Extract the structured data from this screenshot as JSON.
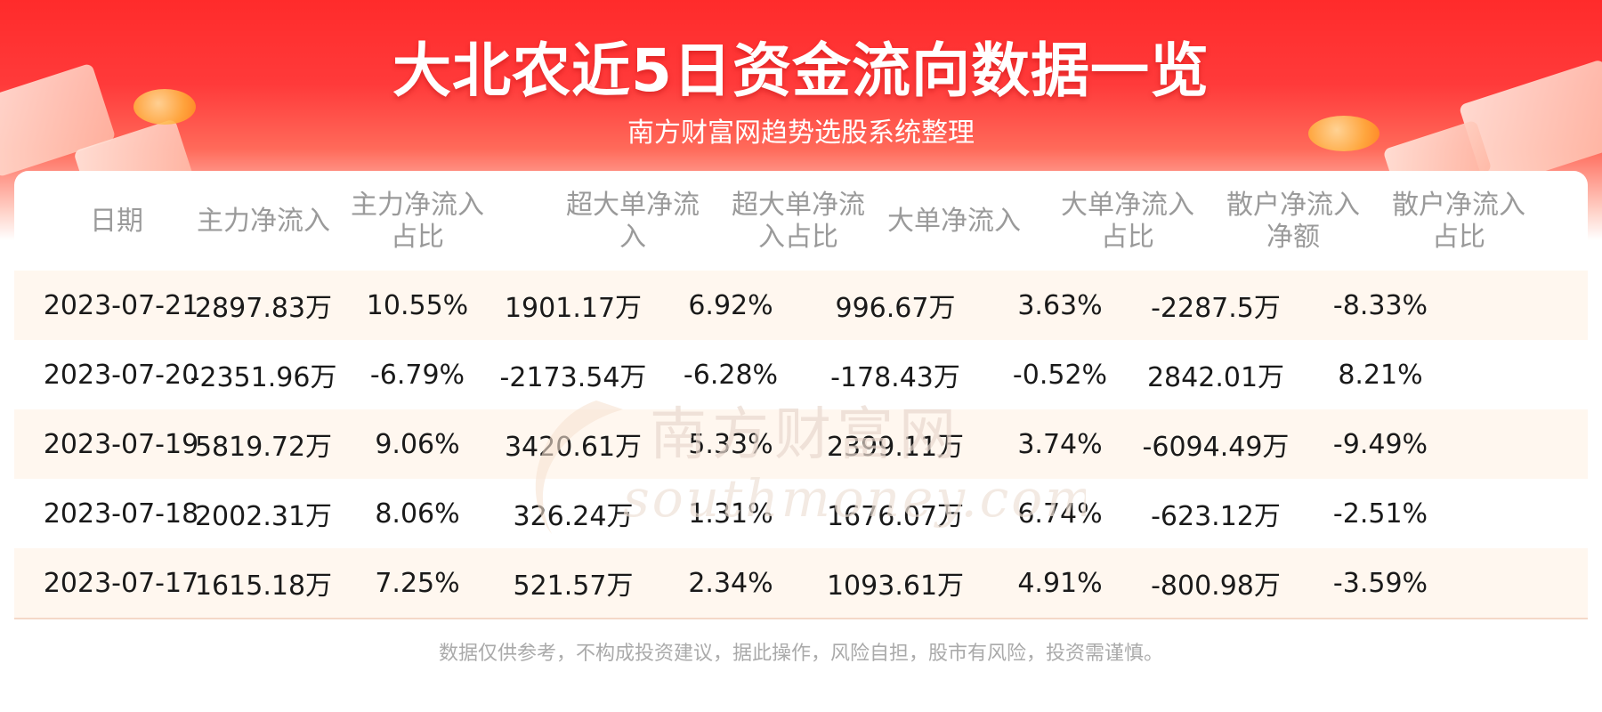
{
  "header": {
    "title": "大北农近5日资金流向数据一览",
    "subtitle": "南方财富网趋势选股系统整理"
  },
  "watermark": {
    "cn": "南方财富网",
    "en": "southmoney.com"
  },
  "table": {
    "columns": [
      "日期",
      "主力净流入",
      "主力净流入占比",
      "超大单净流入",
      "超大单净流入占比",
      "大单净流入",
      "大单净流入占比",
      "散户净流入净额",
      "散户净流入占比"
    ],
    "rows": [
      [
        "2023-07-21",
        "2897.83万",
        "10.55%",
        "1901.17万",
        "6.92%",
        "996.67万",
        "3.63%",
        "-2287.5万",
        "-8.33%"
      ],
      [
        "2023-07-20",
        "-2351.96万",
        "-6.79%",
        "-2173.54万",
        "-6.28%",
        "-178.43万",
        "-0.52%",
        "2842.01万",
        "8.21%"
      ],
      [
        "2023-07-19",
        "5819.72万",
        "9.06%",
        "3420.61万",
        "5.33%",
        "2399.11万",
        "3.74%",
        "-6094.49万",
        "-9.49%"
      ],
      [
        "2023-07-18",
        "2002.31万",
        "8.06%",
        "326.24万",
        "1.31%",
        "1676.07万",
        "6.74%",
        "-623.12万",
        "-2.51%"
      ],
      [
        "2023-07-17",
        "1615.18万",
        "7.25%",
        "521.57万",
        "2.34%",
        "1093.61万",
        "4.91%",
        "-800.98万",
        "-3.59%"
      ]
    ]
  },
  "footer": {
    "disclaimer": "数据仅供参考，不构成投资建议，据此操作，风险自担，股市有风险，投资需谨慎。"
  },
  "colors": {
    "banner_red": "#ff2b2b",
    "stripe": "#fff7ef",
    "header_text": "#9a9a9a",
    "body_text": "#1a1a1a",
    "footer_text": "#aaaaaa"
  }
}
